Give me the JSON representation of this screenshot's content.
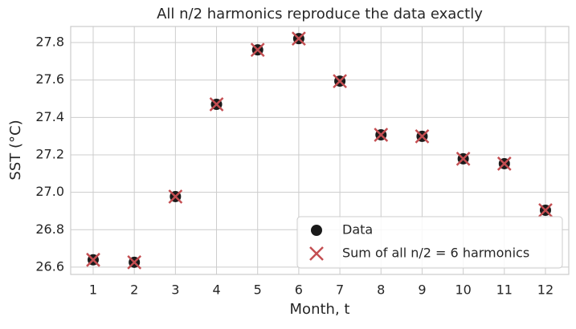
{
  "chart_data": {
    "type": "scatter",
    "title": "All n/2 harmonics reproduce the data exactly",
    "x_label": "Month, t",
    "y_label": "SST (°C)",
    "x": [
      1,
      2,
      3,
      4,
      5,
      6,
      7,
      8,
      9,
      10,
      11,
      12
    ],
    "series": [
      {
        "name": "Data",
        "color": "#1a1a1a",
        "marker": "circle",
        "values": [
          26.639,
          26.626,
          26.977,
          27.47,
          27.761,
          27.821,
          27.594,
          27.307,
          27.299,
          27.179,
          27.153,
          26.904
        ]
      },
      {
        "name": "Sum of all n/2 = 6 harmonics",
        "color": "#c44e52",
        "marker": "x",
        "values": [
          26.639,
          26.626,
          26.977,
          27.47,
          27.761,
          27.821,
          27.594,
          27.307,
          27.299,
          27.179,
          27.153,
          26.904
        ]
      }
    ],
    "xlim": [
      0.453,
      12.567
    ],
    "xticks": [
      1,
      2,
      3,
      4,
      5,
      6,
      7,
      8,
      9,
      10,
      11,
      12
    ],
    "ylim": [
      26.561,
      27.886
    ],
    "yticks": [
      {
        "value": 26.6,
        "label": "26.6"
      },
      {
        "value": 26.8,
        "label": "26.8"
      },
      {
        "value": 27.0,
        "label": "27.0"
      },
      {
        "value": 27.2,
        "label": "27.2"
      },
      {
        "value": 27.4,
        "label": "27.4"
      },
      {
        "value": 27.6,
        "label": "27.6"
      },
      {
        "value": 27.8,
        "label": "27.8"
      }
    ],
    "grid": true,
    "legend": "lower right"
  }
}
